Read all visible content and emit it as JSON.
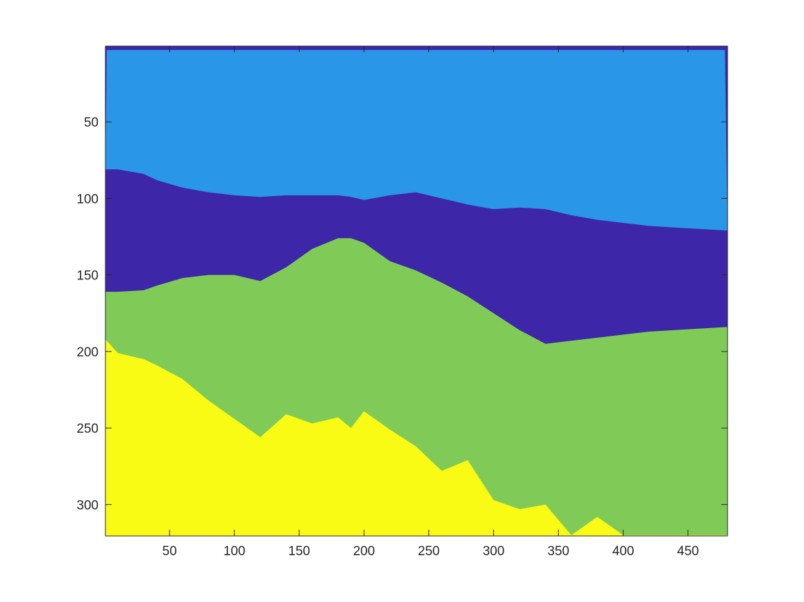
{
  "chart_data": {
    "type": "heatmap",
    "title": "",
    "xlabel": "",
    "ylabel": "",
    "xlim": [
      0.5,
      480.5
    ],
    "ylim": [
      0.5,
      320.5
    ],
    "y_reversed": true,
    "grid": false,
    "legend": "none",
    "x_ticks": [
      50,
      100,
      150,
      200,
      250,
      300,
      350,
      400,
      450
    ],
    "x_tick_labels": [
      "50",
      "100",
      "150",
      "200",
      "250",
      "300",
      "350",
      "400",
      "450"
    ],
    "y_ticks": [
      50,
      100,
      150,
      200,
      250,
      300
    ],
    "y_tick_labels": [
      "50",
      "100",
      "150",
      "200",
      "250",
      "300"
    ],
    "classes": [
      {
        "id": 1,
        "color": "#3e26a8"
      },
      {
        "id": 2,
        "color": "#2996e8"
      },
      {
        "id": 3,
        "color": "#80cb58"
      },
      {
        "id": 4,
        "color": "#f9fb15"
      }
    ],
    "region_boundaries": {
      "x": [
        1,
        10,
        30,
        40,
        60,
        80,
        100,
        120,
        140,
        160,
        180,
        190,
        200,
        220,
        240,
        260,
        280,
        300,
        320,
        340,
        360,
        380,
        400,
        420,
        440,
        460,
        480
      ],
      "sky_bottom_row": [
        81,
        81,
        84,
        88,
        93,
        96,
        98,
        99,
        98,
        98,
        98,
        99,
        101,
        98,
        96,
        100,
        104,
        107,
        106,
        107,
        111,
        114,
        116,
        118,
        119,
        120,
        121
      ],
      "ridge_top_row": [
        161,
        161,
        160,
        157,
        152,
        150,
        150,
        154,
        145,
        133,
        126,
        126,
        129,
        141,
        147,
        155,
        164,
        175,
        186,
        195,
        193,
        191,
        189,
        187,
        186,
        185,
        184
      ],
      "foreground_top_row": [
        192,
        201,
        205,
        209,
        218,
        232,
        244,
        256,
        241,
        247,
        243,
        250,
        239,
        251,
        262,
        278,
        271,
        297,
        303,
        300,
        320,
        308,
        320,
        320,
        320,
        320,
        320
      ]
    }
  }
}
